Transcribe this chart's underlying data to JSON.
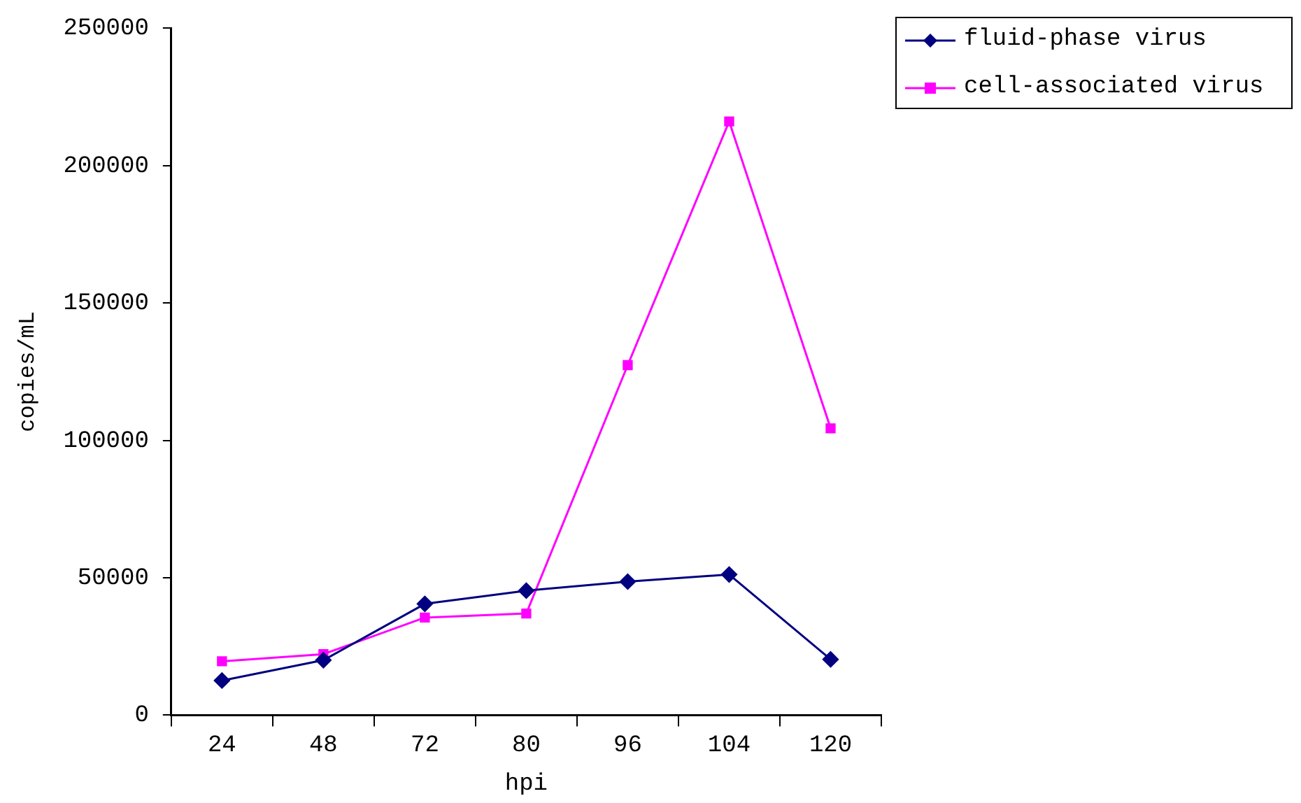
{
  "chart_data": {
    "type": "line",
    "xlabel": "hpi",
    "ylabel": "copies/mL",
    "categories": [
      "24",
      "48",
      "72",
      "80",
      "96",
      "104",
      "120"
    ],
    "series": [
      {
        "name": "fluid-phase virus",
        "color": "#000080",
        "marker": "diamond",
        "values": [
          12600,
          20000,
          40500,
          45300,
          48600,
          51200,
          20300
        ]
      },
      {
        "name": "cell-associated virus",
        "color": "#ff00ff",
        "marker": "square",
        "values": [
          19600,
          22200,
          35500,
          37000,
          127400,
          216100,
          104400
        ]
      }
    ],
    "ylim": [
      0,
      250000
    ],
    "yticks": [
      0,
      50000,
      100000,
      150000,
      200000,
      250000
    ],
    "grid": false,
    "legend": "top right"
  }
}
